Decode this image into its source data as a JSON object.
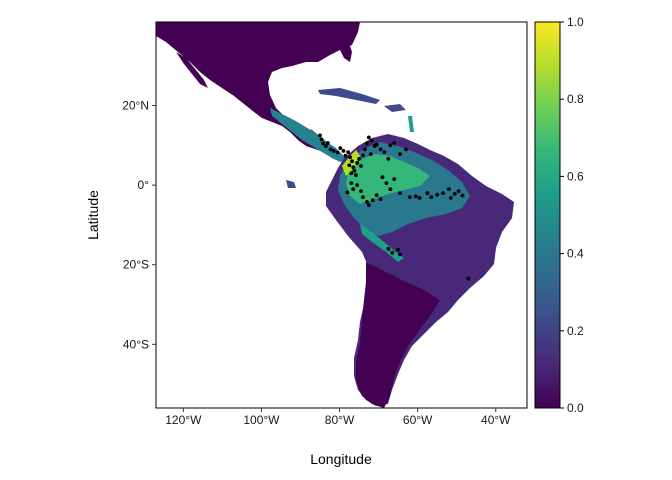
{
  "chart_data": {
    "type": "heatmap",
    "title": "",
    "xlabel": "Longitude",
    "ylabel": "Latitude",
    "xlim": [
      -127,
      -32
    ],
    "ylim": [
      -56,
      41
    ],
    "x_ticks": [
      {
        "value": -120,
        "label": "120°W"
      },
      {
        "value": -100,
        "label": "100°W"
      },
      {
        "value": -80,
        "label": "80°W"
      },
      {
        "value": -60,
        "label": "60°W"
      },
      {
        "value": -40,
        "label": "40°W"
      }
    ],
    "y_ticks": [
      {
        "value": 20,
        "label": "20°N"
      },
      {
        "value": 0,
        "label": "0°"
      },
      {
        "value": -20,
        "label": "20°S"
      },
      {
        "value": -40,
        "label": "40°S"
      }
    ],
    "colorbar": {
      "palette": "viridis",
      "range": [
        0,
        1
      ],
      "ticks": [
        {
          "value": 0.0,
          "label": "0.0"
        },
        {
          "value": 0.2,
          "label": "0.2"
        },
        {
          "value": 0.4,
          "label": "0.4"
        },
        {
          "value": 0.6,
          "label": "0.6"
        },
        {
          "value": 0.8,
          "label": "0.8"
        },
        {
          "value": 1.0,
          "label": "1.0"
        }
      ],
      "stops": [
        "#440154",
        "#482878",
        "#3e4a89",
        "#31688e",
        "#26828e",
        "#1f9e89",
        "#35b779",
        "#6ece58",
        "#b5de2b",
        "#fde725"
      ]
    },
    "occurrence_points": [
      [
        -85.0,
        12.5
      ],
      [
        -84.6,
        11.5
      ],
      [
        -84.2,
        10.5
      ],
      [
        -83.5,
        9.8
      ],
      [
        -83.0,
        10.6
      ],
      [
        -82.3,
        9.0
      ],
      [
        -81.5,
        8.6
      ],
      [
        -80.5,
        8.2
      ],
      [
        -79.8,
        9.3
      ],
      [
        -79.0,
        8.6
      ],
      [
        -78.5,
        7.4
      ],
      [
        -77.8,
        8.3
      ],
      [
        -77.3,
        7.0
      ],
      [
        -76.8,
        6.0
      ],
      [
        -77.5,
        5.0
      ],
      [
        -76.5,
        4.5
      ],
      [
        -77.0,
        3.0
      ],
      [
        -76.2,
        3.6
      ],
      [
        -75.8,
        2.5
      ],
      [
        -75.5,
        5.6
      ],
      [
        -75.0,
        6.6
      ],
      [
        -74.5,
        4.8
      ],
      [
        -74.0,
        7.5
      ],
      [
        -73.5,
        9.0
      ],
      [
        -73.0,
        10.5
      ],
      [
        -72.5,
        12.0
      ],
      [
        -71.8,
        11.2
      ],
      [
        -71.0,
        9.8
      ],
      [
        -72.0,
        7.8
      ],
      [
        -70.5,
        10.2
      ],
      [
        -69.5,
        9.0
      ],
      [
        -68.5,
        8.3
      ],
      [
        -67.0,
        10.0
      ],
      [
        -66.0,
        10.6
      ],
      [
        -67.5,
        6.6
      ],
      [
        -64.5,
        7.8
      ],
      [
        -63.0,
        9.0
      ],
      [
        -76.5,
        -1.0
      ],
      [
        -77.0,
        0.5
      ],
      [
        -78.0,
        -1.8
      ],
      [
        -75.5,
        0.0
      ],
      [
        -74.5,
        -1.5
      ],
      [
        -74.0,
        -3.0
      ],
      [
        -73.0,
        -4.2
      ],
      [
        -72.5,
        -5.0
      ],
      [
        -71.5,
        -3.8
      ],
      [
        -70.5,
        -2.5
      ],
      [
        -69.5,
        -3.5
      ],
      [
        -69.0,
        2.0
      ],
      [
        -68.0,
        0.5
      ],
      [
        -67.0,
        -1.0
      ],
      [
        -66.0,
        1.5
      ],
      [
        -64.5,
        -2.0
      ],
      [
        -62.0,
        -3.0
      ],
      [
        -60.5,
        -2.8
      ],
      [
        -59.5,
        -3.2
      ],
      [
        -57.5,
        -2.0
      ],
      [
        -56.5,
        -3.0
      ],
      [
        -55.0,
        -2.4
      ],
      [
        -53.5,
        -2.0
      ],
      [
        -52.0,
        -1.0
      ],
      [
        -50.5,
        -2.2
      ],
      [
        -49.5,
        -1.5
      ],
      [
        -51.5,
        -3.2
      ],
      [
        -48.5,
        -2.6
      ],
      [
        -67.5,
        -16.0
      ],
      [
        -66.5,
        -17.0
      ],
      [
        -65.0,
        -16.2
      ],
      [
        -64.5,
        -17.4
      ],
      [
        -47.0,
        -23.5
      ]
    ]
  }
}
